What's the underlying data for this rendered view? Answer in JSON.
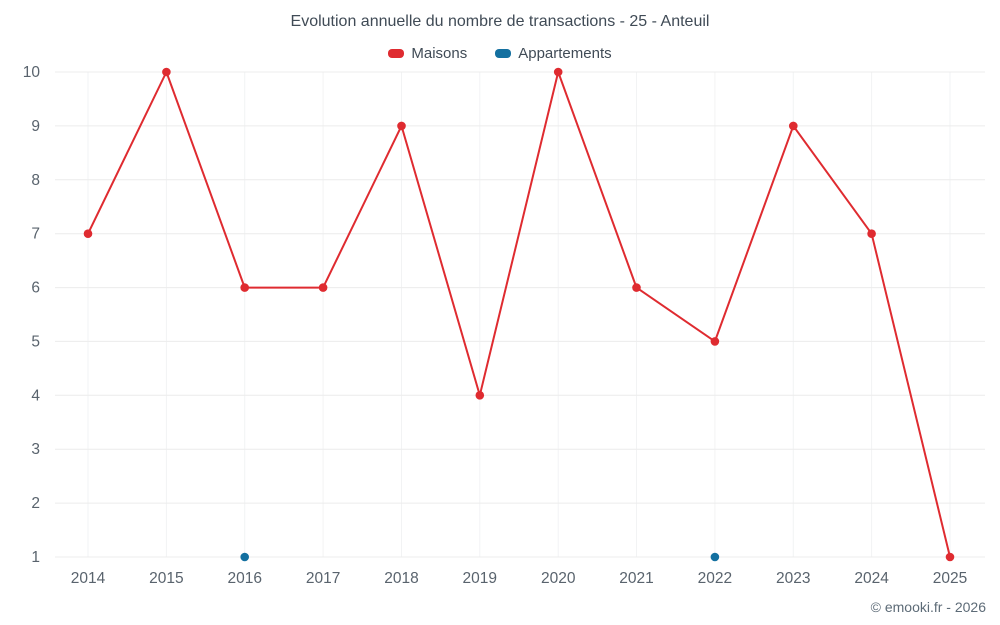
{
  "header": {
    "title": "Evolution annuelle du nombre de transactions - 25 - Anteuil"
  },
  "legend": {
    "items": [
      {
        "label": "Maisons",
        "color": "#df2b30"
      },
      {
        "label": "Appartements",
        "color": "#1470a0"
      }
    ]
  },
  "footer": {
    "credit": "© emooki.fr - 2026"
  },
  "chart_data": {
    "type": "line",
    "title": "Evolution annuelle du nombre de transactions - 25 - Anteuil",
    "categories": [
      "2014",
      "2015",
      "2016",
      "2017",
      "2018",
      "2019",
      "2020",
      "2021",
      "2022",
      "2023",
      "2024",
      "2025"
    ],
    "series": [
      {
        "name": "Maisons",
        "color": "#df2b30",
        "values": [
          7,
          10,
          6,
          6,
          9,
          4,
          10,
          6,
          5,
          9,
          7,
          1
        ]
      },
      {
        "name": "Appartements",
        "color": "#1470a0",
        "values": [
          null,
          null,
          1,
          null,
          null,
          null,
          null,
          null,
          1,
          null,
          null,
          null
        ]
      }
    ],
    "ylim": [
      1,
      10
    ],
    "yticks": [
      1,
      2,
      3,
      4,
      5,
      6,
      7,
      8,
      9,
      10
    ],
    "xlabel": "",
    "ylabel": "",
    "grid": true,
    "legend_position": "top"
  }
}
